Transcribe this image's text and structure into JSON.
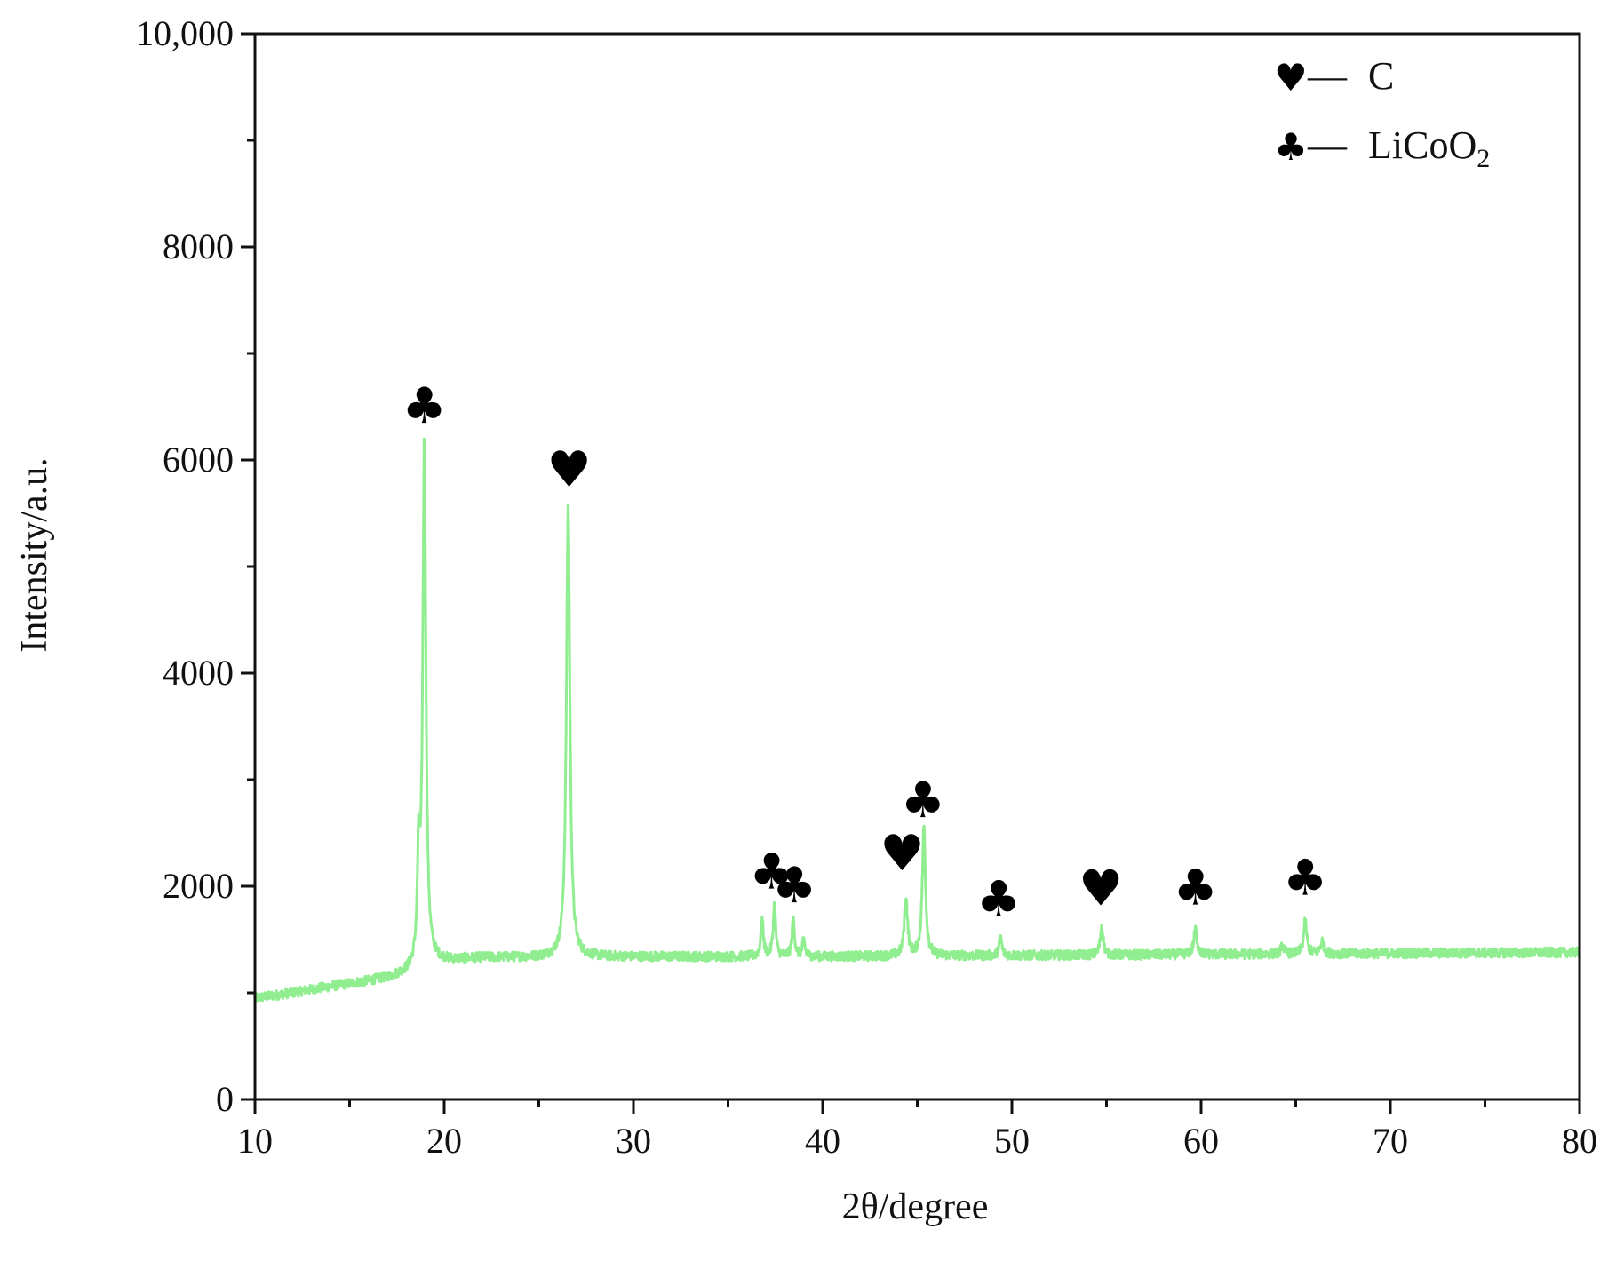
{
  "chart_data": {
    "type": "line",
    "title": "",
    "xlabel": "2θ/degree",
    "ylabel": "Intensity/a.u.",
    "xlim": [
      10,
      80
    ],
    "ylim": [
      0,
      10000
    ],
    "x_ticks": [
      10,
      20,
      30,
      40,
      50,
      60,
      70,
      80
    ],
    "y_ticks": [
      0,
      2000,
      4000,
      6000,
      8000,
      10000
    ],
    "x_tick_labels": [
      "10",
      "20",
      "30",
      "40",
      "50",
      "60",
      "70",
      "80"
    ],
    "y_tick_labels": [
      "0",
      "2000",
      "4000",
      "6000",
      "8000",
      "10,000"
    ],
    "grid": false,
    "legend_position": "top-right",
    "legend": [
      {
        "symbol": "heart",
        "glyph": "♥",
        "dash": "—",
        "text": "C"
      },
      {
        "symbol": "club",
        "glyph": "♣",
        "dash": "—",
        "text": "LiCoO",
        "subscript": "2"
      }
    ],
    "series": [
      {
        "color": "#90ee90",
        "baseline": [
          [
            10,
            950
          ],
          [
            12,
            1000
          ],
          [
            14,
            1060
          ],
          [
            16,
            1110
          ],
          [
            17.5,
            1160
          ],
          [
            18.3,
            1200
          ],
          [
            19.5,
            1290
          ],
          [
            22,
            1330
          ],
          [
            30,
            1340
          ],
          [
            40,
            1340
          ],
          [
            50,
            1350
          ],
          [
            60,
            1360
          ],
          [
            70,
            1370
          ],
          [
            80,
            1380
          ]
        ],
        "peaks": [
          {
            "x": 18.65,
            "height": 950,
            "width": 0.08
          },
          {
            "x": 18.95,
            "height": 4900,
            "width": 0.1
          },
          {
            "x": 26.55,
            "height": 4250,
            "width": 0.11
          },
          {
            "x": 36.8,
            "height": 350,
            "width": 0.08
          },
          {
            "x": 37.45,
            "height": 480,
            "width": 0.08
          },
          {
            "x": 38.45,
            "height": 350,
            "width": 0.08
          },
          {
            "x": 39.0,
            "height": 150,
            "width": 0.08
          },
          {
            "x": 44.4,
            "height": 560,
            "width": 0.1
          },
          {
            "x": 45.35,
            "height": 1220,
            "width": 0.1
          },
          {
            "x": 49.4,
            "height": 180,
            "width": 0.08
          },
          {
            "x": 54.75,
            "height": 280,
            "width": 0.09
          },
          {
            "x": 59.7,
            "height": 240,
            "width": 0.1
          },
          {
            "x": 64.3,
            "height": 80,
            "width": 0.1
          },
          {
            "x": 65.5,
            "height": 300,
            "width": 0.1
          },
          {
            "x": 66.4,
            "height": 120,
            "width": 0.1
          }
        ],
        "noise": 45
      }
    ],
    "annotations": [
      {
        "symbol": "club",
        "glyph": "♣",
        "x": 18.95,
        "y": 6350
      },
      {
        "symbol": "heart",
        "glyph": "♥",
        "x": 26.6,
        "y": 5750
      },
      {
        "symbol": "club",
        "glyph": "♣",
        "x": 37.3,
        "y": 1980
      },
      {
        "symbol": "club",
        "glyph": "♣",
        "x": 38.5,
        "y": 1850
      },
      {
        "symbol": "heart",
        "glyph": "♥",
        "x": 44.2,
        "y": 2150
      },
      {
        "symbol": "club",
        "glyph": "♣",
        "x": 45.3,
        "y": 2650
      },
      {
        "symbol": "club",
        "glyph": "♣",
        "x": 49.3,
        "y": 1720
      },
      {
        "symbol": "heart",
        "glyph": "♥",
        "x": 54.7,
        "y": 1820
      },
      {
        "symbol": "club",
        "glyph": "♣",
        "x": 59.7,
        "y": 1830
      },
      {
        "symbol": "club",
        "glyph": "♣",
        "x": 65.5,
        "y": 1920
      }
    ]
  }
}
